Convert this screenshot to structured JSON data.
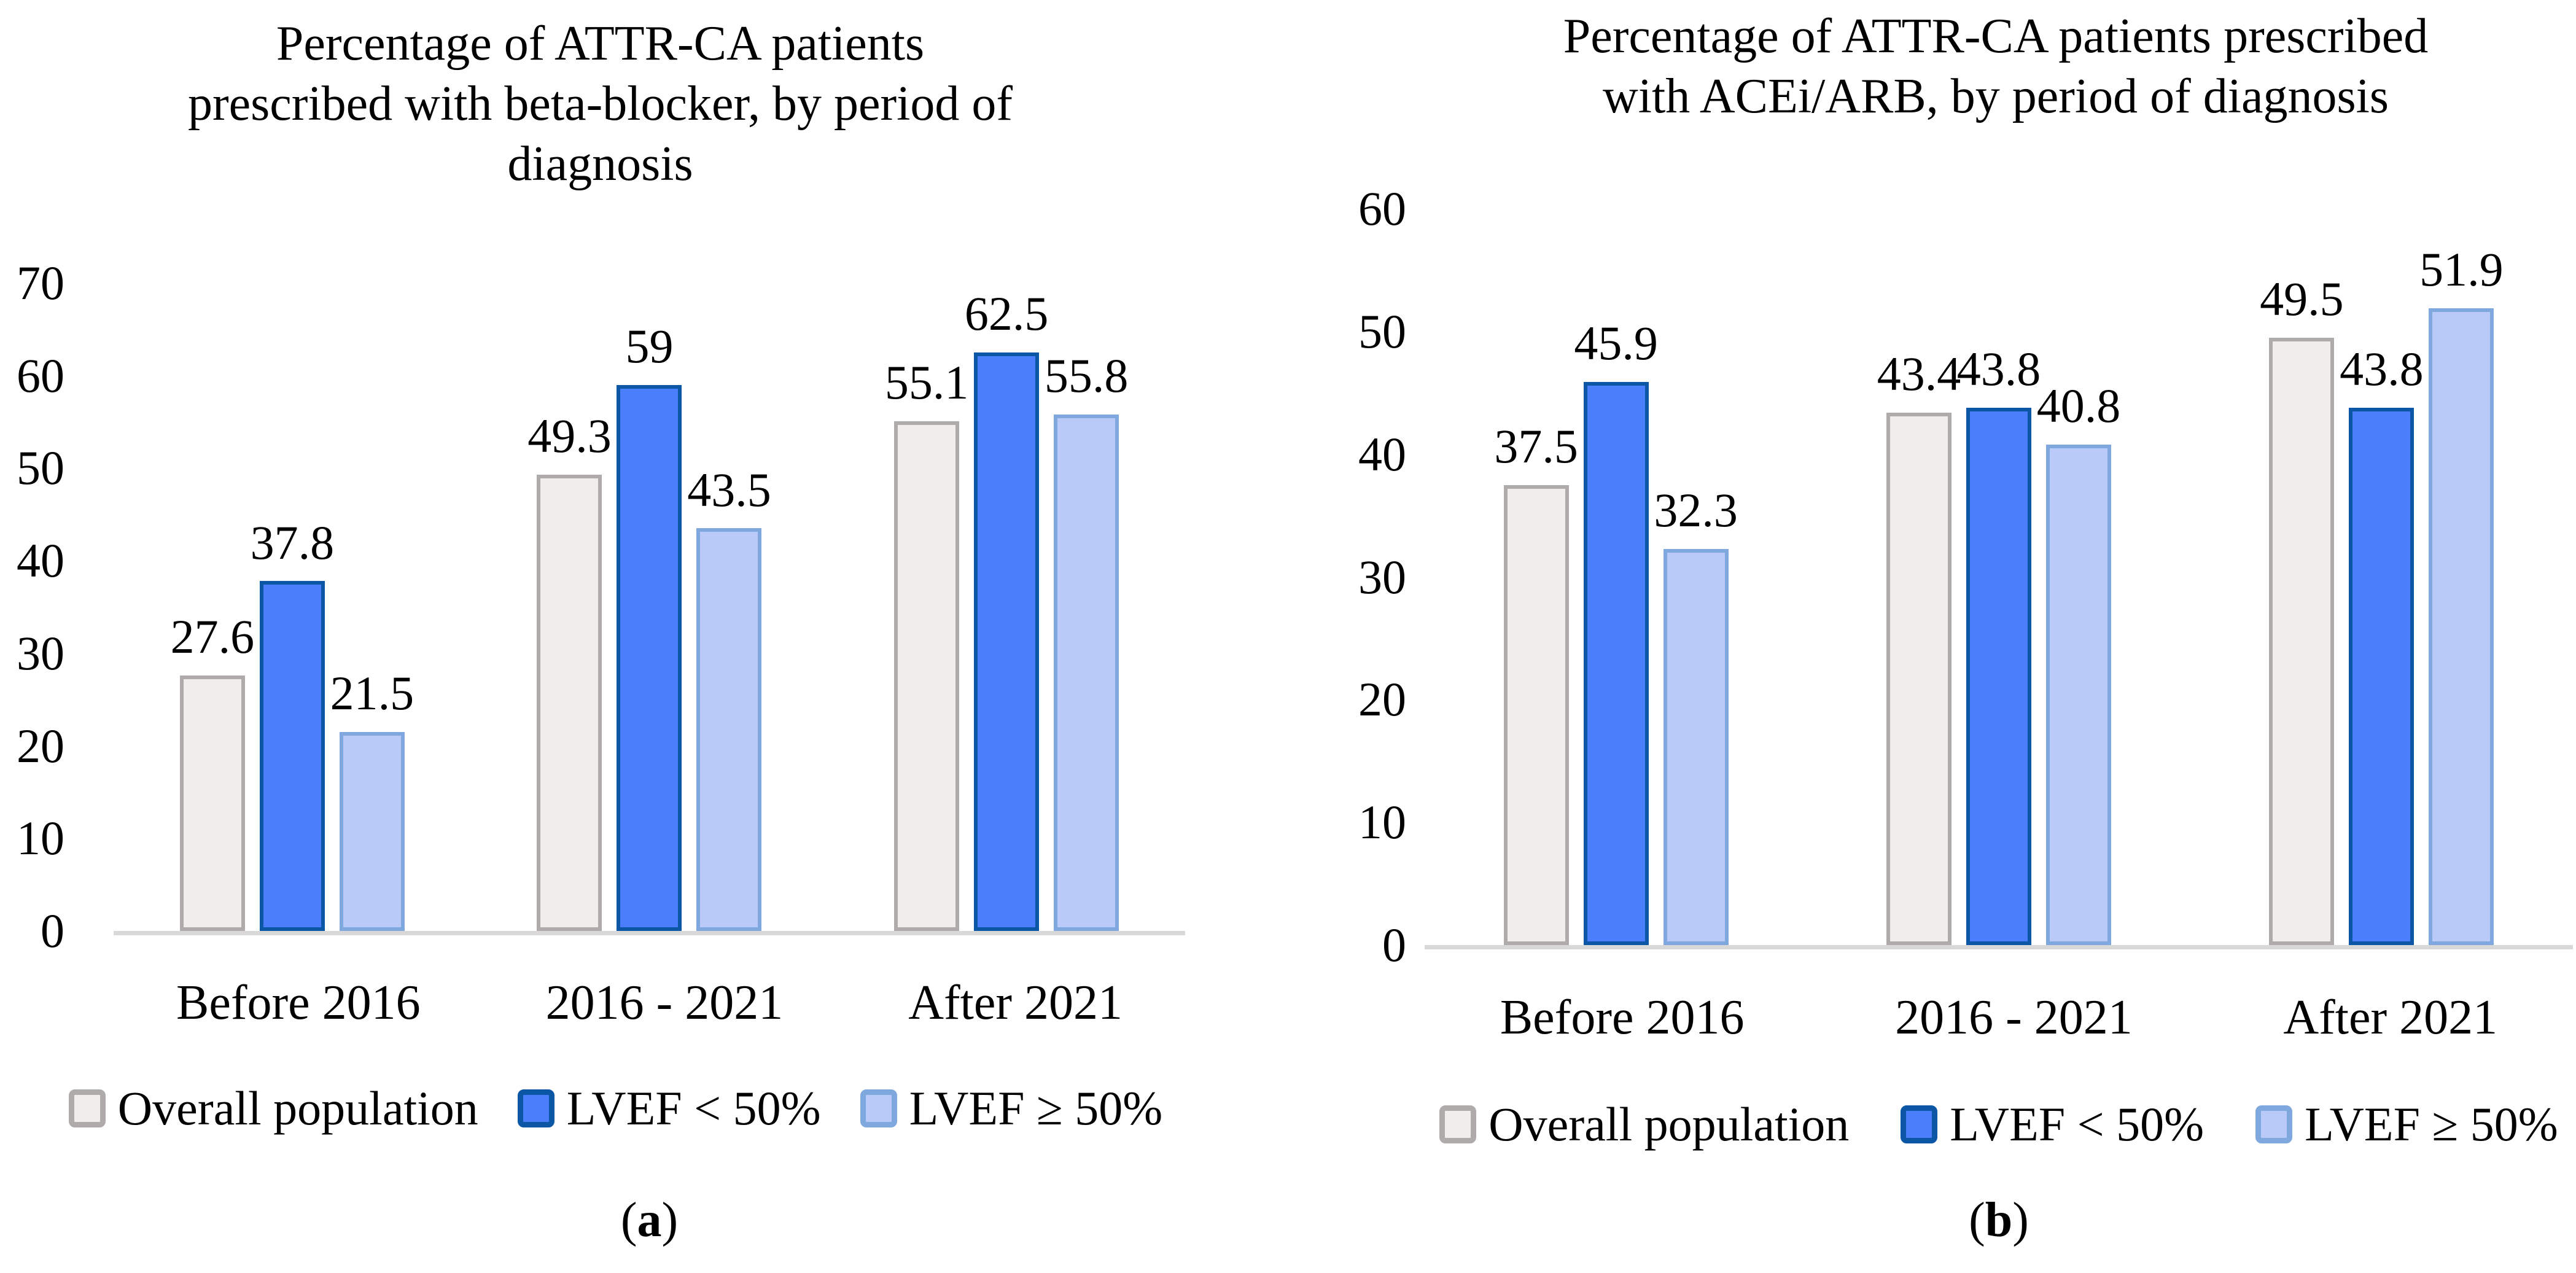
{
  "figure": {
    "panels": [
      {
        "caption": {
          "open": "(",
          "letter": "a",
          "close": ")"
        }
      },
      {
        "caption": {
          "open": "(",
          "letter": "b",
          "close": ")"
        }
      }
    ],
    "colors": {
      "axis_line": "#D8D8D8",
      "text": "#000000"
    }
  },
  "chart_data": [
    {
      "type": "bar",
      "title": "Percentage of ATTR-CA patients prescribed with beta-blocker, by period of diagnosis",
      "title_lines": [
        "Percentage of ATTR-CA patients",
        "prescribed with beta-blocker, by period of",
        "diagnosis"
      ],
      "categories": [
        "Before 2016",
        "2016 - 2021",
        "After 2021"
      ],
      "series": [
        {
          "name": "Overall population",
          "values": [
            27.6,
            49.3,
            55.1
          ],
          "fill": "#F0EDEB",
          "stroke": "#AFABAA"
        },
        {
          "name": "LVEF < 50%",
          "values": [
            37.8,
            59,
            62.5
          ],
          "fill": "#4B7EFA",
          "stroke": "#0C57A5"
        },
        {
          "name": "LVEF ≥ 50%",
          "values": [
            21.5,
            43.5,
            55.8
          ],
          "fill": "#B9CAF8",
          "stroke": "#7FA9DE"
        }
      ],
      "xlabel": "",
      "ylabel": "",
      "ylim": [
        0,
        70
      ],
      "yticks": [
        0,
        10,
        20,
        30,
        40,
        50,
        60,
        70
      ],
      "grid": false,
      "legend_position": "bottom",
      "data_labels": true
    },
    {
      "type": "bar",
      "title": "Percentage of ATTR-CA patients prescribed with ACEi/ARB, by period of diagnosis",
      "title_lines": [
        "Percentage of ATTR-CA patients prescribed",
        "with ACEi/ARB, by period of diagnosis"
      ],
      "categories": [
        "Before 2016",
        "2016 - 2021",
        "After 2021"
      ],
      "series": [
        {
          "name": "Overall population",
          "values": [
            37.5,
            43.4,
            49.5
          ],
          "fill": "#F0EDEB",
          "stroke": "#AFABAA"
        },
        {
          "name": "LVEF < 50%",
          "values": [
            45.9,
            43.8,
            43.8
          ],
          "fill": "#4B7EFA",
          "stroke": "#0C57A5"
        },
        {
          "name": "LVEF ≥ 50%",
          "values": [
            32.3,
            40.8,
            51.9
          ],
          "fill": "#B9CAF8",
          "stroke": "#7FA9DE"
        }
      ],
      "xlabel": "",
      "ylabel": "",
      "ylim": [
        0,
        60
      ],
      "yticks": [
        0,
        10,
        20,
        30,
        40,
        50,
        60
      ],
      "grid": false,
      "legend_position": "bottom",
      "data_labels": true
    }
  ]
}
